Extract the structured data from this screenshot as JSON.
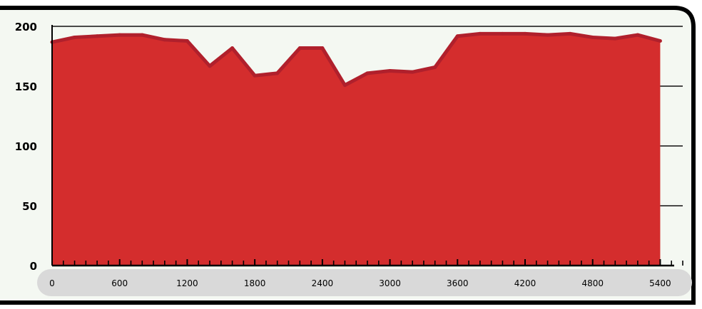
{
  "chart_data": {
    "type": "area",
    "title": "",
    "xlabel": "",
    "ylabel": "",
    "x": [
      0,
      200,
      400,
      600,
      800,
      1000,
      1200,
      1400,
      1600,
      1800,
      2000,
      2200,
      2400,
      2600,
      2800,
      3000,
      3200,
      3400,
      3600,
      3800,
      4000,
      4200,
      4400,
      4600,
      4800,
      5000,
      5200,
      5400
    ],
    "series": [
      {
        "values": [
          188,
          192,
          193,
          194,
          194,
          190,
          189,
          168,
          183,
          160,
          162,
          183,
          183,
          152,
          162,
          164,
          163,
          167,
          193,
          195,
          195,
          195,
          194,
          195,
          192,
          191,
          194,
          189
        ]
      }
    ],
    "xlim": [
      0,
      5600
    ],
    "ylim": [
      0,
      200
    ],
    "x_ticks": [
      0,
      600,
      1200,
      1800,
      2400,
      3000,
      3600,
      4200,
      4800,
      5400
    ],
    "y_ticks": [
      0,
      50,
      100,
      150,
      200
    ],
    "grid": "horizontal",
    "legend": "none",
    "colors": {
      "fill": "#d42d2d",
      "line": "#b0202c",
      "gridline": "#111111",
      "background": "#f4f8f2",
      "frame": "#000000",
      "axis_band": "#d9d9d9"
    }
  }
}
